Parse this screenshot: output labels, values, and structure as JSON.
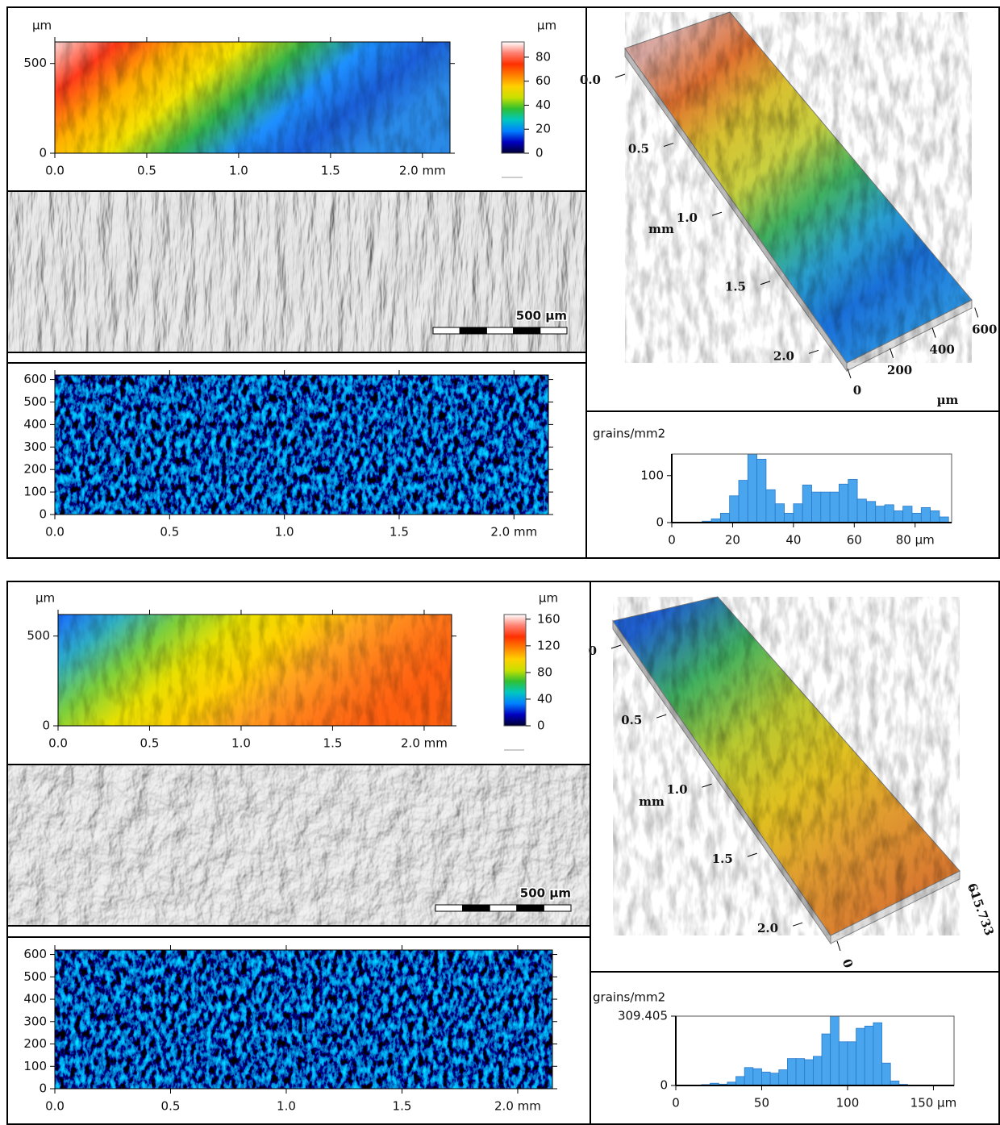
{
  "chart_data": [
    {
      "type": "heightmap",
      "y_unit": "µm",
      "xlim": [
        0,
        2.15
      ],
      "ylim": [
        0,
        620
      ],
      "xticks": [
        {
          "value": 0,
          "label": "0.0"
        },
        0.5,
        {
          "value": 1,
          "label": "1.0"
        },
        1.5,
        {
          "value": 2,
          "label": "2.0 mm"
        }
      ],
      "yticks": [
        0,
        500
      ],
      "field_colors": [
        "#fbd7d4",
        "#ff3a1a",
        "#ffb000",
        "#f5e400",
        "#34b44a",
        "#1e90ff",
        "#1a5ed8",
        "#2a8ae8"
      ],
      "colorbar": {
        "unit": "µm",
        "lim": [
          0,
          92.7
        ],
        "ticks": [
          0,
          20,
          40,
          60,
          80
        ],
        "colormap": [
          "#000030",
          "#0000c0",
          "#0080ff",
          "#00c8c0",
          "#30c030",
          "#c8e000",
          "#ffd000",
          "#ff8000",
          "#ff3000",
          "#ff8070",
          "#ffffff"
        ]
      }
    },
    {
      "type": "relief",
      "scale_bar": "500 µm",
      "streaks": "0.06 0.012"
    },
    {
      "type": "grainmap",
      "xlim": [
        0,
        2.15
      ],
      "ylim": [
        0,
        620
      ],
      "xticks": [
        {
          "value": 0,
          "label": "0.0"
        },
        0.5,
        {
          "value": 1,
          "label": "1.0"
        },
        1.5,
        {
          "value": 2,
          "label": "2.0 mm"
        }
      ],
      "yticks": [
        0,
        100,
        200,
        300,
        400,
        500,
        600
      ]
    },
    {
      "type": "surface3d",
      "x_label": "mm",
      "y_label": "µm",
      "xlim": [
        0,
        2.15
      ],
      "ylim": [
        0,
        620
      ],
      "xticks": [
        {
          "value": 0,
          "label": "0.0"
        },
        0.5,
        {
          "value": 1,
          "label": "1.0"
        },
        1.5,
        {
          "value": 2,
          "label": "2.0"
        }
      ],
      "yticks": [
        0,
        200,
        400,
        600
      ],
      "field_colors": [
        "#d9a8a0",
        "#e07030",
        "#d8c030",
        "#c8d040",
        "#40b060",
        "#2aa0d0",
        "#1a70d8",
        "#2a90e0"
      ]
    },
    {
      "type": "histogram",
      "y_label": "grains/mm2",
      "xlim": [
        0,
        92
      ],
      "ylim": [
        0,
        146
      ],
      "xticks": [
        0,
        20,
        40,
        60,
        {
          "value": 80,
          "label": "80 µm"
        }
      ],
      "yticks": [
        0,
        100
      ],
      "bins": [
        10,
        13,
        16,
        19,
        22,
        25,
        28,
        31,
        34,
        37,
        40,
        43,
        46,
        49,
        52,
        55,
        58,
        61,
        64,
        67,
        70,
        73,
        76,
        79,
        82,
        85,
        88,
        91
      ],
      "values": [
        3,
        8,
        20,
        57,
        90,
        146,
        135,
        70,
        40,
        20,
        40,
        80,
        65,
        65,
        65,
        82,
        92,
        50,
        45,
        35,
        38,
        25,
        35,
        20,
        32,
        25,
        12
      ],
      "color": "#49a6ee"
    },
    {
      "type": "heightmap",
      "y_unit": "µm",
      "xlim": [
        0,
        2.15
      ],
      "ylim": [
        0,
        620
      ],
      "xticks": [
        {
          "value": 0,
          "label": "0.0"
        },
        0.5,
        {
          "value": 1,
          "label": "1.0"
        },
        1.5,
        {
          "value": 2,
          "label": "2.0 mm"
        }
      ],
      "yticks": [
        0,
        500
      ],
      "field_colors": [
        "#1a6cff",
        "#2fb0c8",
        "#7ccf3c",
        "#e8e000",
        "#ffd000",
        "#ffa020",
        "#ff7a1a",
        "#ff6010"
      ],
      "colorbar": {
        "unit": "µm",
        "lim": [
          0,
          167
        ],
        "ticks": [
          0,
          40,
          80,
          120,
          160
        ],
        "colormap": [
          "#000030",
          "#0000c0",
          "#0080ff",
          "#00c8c0",
          "#30c030",
          "#c8e000",
          "#ffd000",
          "#ff8000",
          "#ff3000",
          "#ff8070",
          "#ffffff"
        ]
      }
    },
    {
      "type": "relief",
      "scale_bar": "500 µm",
      "streaks": "0.04 0.03"
    },
    {
      "type": "grainmap",
      "xlim": [
        0,
        2.15
      ],
      "ylim": [
        0,
        620
      ],
      "xticks": [
        {
          "value": 0,
          "label": "0.0"
        },
        0.5,
        {
          "value": 1,
          "label": "1.0"
        },
        1.5,
        {
          "value": 2,
          "label": "2.0 mm"
        }
      ],
      "yticks": [
        0,
        100,
        200,
        300,
        400,
        500,
        600
      ]
    },
    {
      "type": "surface3d",
      "x_label": "mm",
      "xlim": [
        0,
        2.15
      ],
      "ylim": [
        0,
        615.733
      ],
      "xticks": [
        0,
        0.5,
        {
          "value": 1,
          "label": "1.0"
        },
        1.5,
        {
          "value": 2,
          "label": "2.0"
        }
      ],
      "yticks": [
        0,
        615.733
      ],
      "field_colors": [
        "#2060d0",
        "#40b060",
        "#b8c830",
        "#e0c020",
        "#e09a30",
        "#d87a30"
      ]
    },
    {
      "type": "histogram",
      "y_label": "grains/mm2",
      "xlim": [
        0,
        162
      ],
      "ylim": [
        0,
        309.405
      ],
      "xticks": [
        0,
        50,
        100,
        {
          "value": 150,
          "label": "150 µm"
        }
      ],
      "yticks": [
        0,
        309.405
      ],
      "bins": [
        15,
        20,
        25,
        30,
        35,
        40,
        45,
        50,
        55,
        60,
        65,
        70,
        75,
        80,
        85,
        90,
        95,
        100,
        105,
        110,
        115,
        120,
        125,
        130,
        135,
        140
      ],
      "values": [
        4,
        10,
        6,
        15,
        40,
        80,
        75,
        60,
        55,
        70,
        120,
        120,
        115,
        130,
        230,
        309,
        195,
        195,
        255,
        265,
        280,
        100,
        20,
        5,
        2
      ],
      "color": "#49a6ee"
    }
  ]
}
